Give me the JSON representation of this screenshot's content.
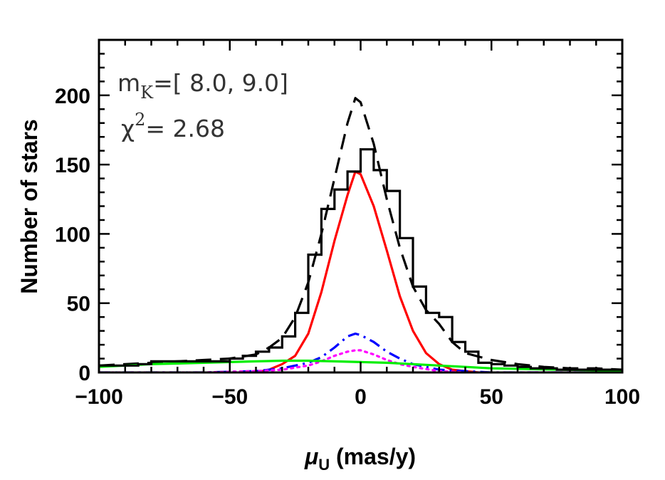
{
  "chart_data": {
    "type": "line",
    "title": "",
    "xlabel_symbol": "μ",
    "xlabel_subscript": "U",
    "xlabel_rest": " (mas/y)",
    "ylabel": "Number of stars",
    "xlim": [
      -100,
      100
    ],
    "ylim": [
      0,
      240
    ],
    "x_ticks": [
      -100,
      -50,
      0,
      50,
      100
    ],
    "y_ticks": [
      0,
      50,
      100,
      150,
      200
    ],
    "annotations": {
      "mag_prefix": "m",
      "mag_sub": "K",
      "mag_range": "=[ 8.0, 9.0]",
      "chi_symbol": "χ",
      "chi_sup": "2",
      "chi_value": "= 2.68"
    },
    "histogram": {
      "edges": [
        -100,
        -95,
        -90,
        -85,
        -80,
        -75,
        -70,
        -65,
        -60,
        -55,
        -50,
        -45,
        -40,
        -35,
        -30,
        -25,
        -20,
        -15,
        -10,
        -5,
        0,
        5,
        10,
        15,
        20,
        25,
        30,
        35,
        40,
        45,
        50,
        55,
        60,
        65,
        70,
        75,
        80,
        85,
        90,
        95,
        100
      ],
      "counts": [
        5,
        5,
        5,
        6,
        8,
        8,
        8,
        8,
        8,
        8,
        10,
        12,
        15,
        18,
        26,
        43,
        85,
        118,
        132,
        145,
        161,
        146,
        131,
        97,
        62,
        43,
        40,
        22,
        15,
        7,
        6,
        5,
        4,
        3,
        3,
        2,
        2,
        2,
        2,
        2
      ],
      "color": "#000000"
    },
    "series": [
      {
        "style": "dashed",
        "color": "#000000",
        "x": [
          -100,
          -90,
          -80,
          -70,
          -60,
          -50,
          -40,
          -35,
          -30,
          -25,
          -20,
          -15,
          -10,
          -5,
          -2,
          0,
          5,
          10,
          15,
          20,
          25,
          30,
          35,
          40,
          50,
          60,
          70,
          80,
          90,
          100
        ],
        "y": [
          5,
          6,
          7,
          8,
          9,
          10,
          13,
          18,
          25,
          40,
          65,
          100,
          140,
          180,
          198,
          195,
          165,
          125,
          90,
          62,
          45,
          35,
          22,
          14,
          9,
          6,
          4,
          3,
          3,
          2
        ]
      },
      {
        "style": "solid",
        "color": "#ff0000",
        "x": [
          -40,
          -35,
          -30,
          -25,
          -20,
          -15,
          -10,
          -5,
          -2,
          0,
          5,
          10,
          15,
          20,
          25,
          30,
          35,
          40,
          45
        ],
        "y": [
          0,
          2,
          6,
          12,
          28,
          58,
          95,
          128,
          145,
          143,
          120,
          88,
          55,
          30,
          14,
          6,
          2,
          1,
          0
        ]
      },
      {
        "style": "dash-dot",
        "color": "#0000ff",
        "x": [
          -100,
          -60,
          -40,
          -30,
          -20,
          -15,
          -10,
          -5,
          -2,
          0,
          5,
          10,
          15,
          20,
          30,
          40,
          50,
          60,
          100
        ],
        "y": [
          0,
          0,
          1,
          3,
          7,
          11,
          18,
          26,
          28,
          27,
          22,
          15,
          10,
          6,
          2,
          1,
          0,
          0,
          0
        ]
      },
      {
        "style": "dotted",
        "color": "#ff00ff",
        "x": [
          -100,
          -60,
          -40,
          -30,
          -20,
          -15,
          -10,
          -5,
          -2,
          0,
          5,
          10,
          15,
          20,
          30,
          40,
          50,
          60,
          100
        ],
        "y": [
          0,
          0,
          1,
          2,
          5,
          8,
          12,
          15,
          16,
          16,
          13,
          9,
          6,
          4,
          1,
          0,
          0,
          0,
          0
        ]
      },
      {
        "style": "solid",
        "color": "#00ee00",
        "x": [
          -100,
          -90,
          -80,
          -70,
          -60,
          -50,
          -40,
          -30,
          -20,
          -10,
          0,
          10,
          20,
          30,
          40,
          50,
          60,
          70,
          80,
          90,
          100
        ],
        "y": [
          4,
          5,
          6,
          6.5,
          7,
          7.5,
          8,
          8.5,
          8.5,
          8,
          7.5,
          7,
          6,
          5,
          4,
          3,
          2.6,
          2.2,
          1.9,
          1.6,
          1.4
        ]
      }
    ]
  }
}
